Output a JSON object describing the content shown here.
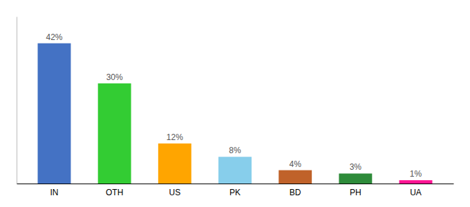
{
  "chart_data": {
    "type": "bar",
    "categories": [
      "IN",
      "OTH",
      "US",
      "PK",
      "BD",
      "PH",
      "UA"
    ],
    "values": [
      42,
      30,
      12,
      8,
      4,
      3,
      1
    ],
    "value_labels": [
      "42%",
      "30%",
      "12%",
      "8%",
      "4%",
      "3%",
      "1%"
    ],
    "colors": [
      "#4472C4",
      "#33CC33",
      "#FFA500",
      "#87CEEB",
      "#C0622A",
      "#2E8B3A",
      "#FF1493"
    ],
    "ylim": [
      0,
      50
    ],
    "data_labels": true,
    "tick_labels": "x"
  }
}
